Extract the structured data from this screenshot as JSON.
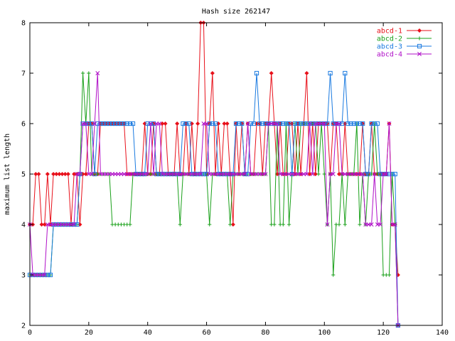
{
  "chart_data": {
    "type": "line",
    "title": "Hash size 262147",
    "xlabel": "",
    "ylabel": "maximum list length",
    "xlim": [
      0,
      140
    ],
    "ylim": [
      2,
      8
    ],
    "xticks": [
      0,
      20,
      40,
      60,
      80,
      100,
      120,
      140
    ],
    "yticks": [
      2,
      3,
      4,
      5,
      6,
      7,
      8
    ],
    "grid": false,
    "legend_position": "top-right",
    "series": [
      {
        "name": "abcd-1",
        "color": "#e8101a",
        "marker": "diamond",
        "values": [
          4,
          4,
          5,
          5,
          4,
          4,
          5,
          4,
          5,
          5,
          5,
          5,
          5,
          5,
          4,
          5,
          5,
          4,
          5,
          5,
          6,
          6,
          5,
          5,
          6,
          6,
          6,
          6,
          6,
          6,
          6,
          6,
          6,
          5,
          5,
          5,
          5,
          5,
          5,
          6,
          5,
          5,
          6,
          5,
          5,
          6,
          6,
          5,
          5,
          5,
          6,
          5,
          5,
          6,
          5,
          6,
          5,
          6,
          8,
          8,
          5,
          6,
          7,
          5,
          6,
          5,
          6,
          6,
          5,
          4,
          6,
          5,
          6,
          5,
          6,
          5,
          5,
          6,
          6,
          5,
          6,
          6,
          7,
          6,
          5,
          6,
          5,
          5,
          6,
          6,
          5,
          6,
          5,
          6,
          7,
          5,
          6,
          5,
          6,
          6,
          6,
          6,
          5,
          6,
          6,
          5,
          5,
          6,
          5,
          5,
          5,
          5,
          5,
          6,
          5,
          5,
          6,
          5,
          5,
          5,
          5,
          5,
          6,
          4,
          4,
          3
        ]
      },
      {
        "name": "abcd-2",
        "color": "#1aa01a",
        "marker": "plus",
        "values": [
          3,
          3,
          3,
          3,
          3,
          3,
          3,
          3,
          4,
          4,
          4,
          4,
          4,
          4,
          4,
          4,
          4,
          5,
          7,
          6,
          7,
          5,
          5,
          5,
          5,
          5,
          5,
          5,
          4,
          4,
          4,
          4,
          4,
          4,
          4,
          5,
          5,
          5,
          5,
          5,
          5,
          5,
          5,
          5,
          5,
          5,
          5,
          5,
          5,
          5,
          5,
          4,
          5,
          5,
          5,
          5,
          5,
          5,
          5,
          5,
          5,
          4,
          5,
          5,
          5,
          5,
          5,
          5,
          4,
          5,
          5,
          5,
          5,
          5,
          5,
          5,
          5,
          5,
          5,
          5,
          5,
          6,
          4,
          4,
          6,
          4,
          4,
          6,
          4,
          5,
          6,
          5,
          6,
          6,
          6,
          6,
          6,
          6,
          5,
          6,
          5,
          4,
          5,
          3,
          4,
          4,
          5,
          4,
          5,
          5,
          5,
          6,
          4,
          5,
          4,
          5,
          5,
          6,
          5,
          5,
          3,
          3,
          3,
          5,
          4,
          2
        ]
      },
      {
        "name": "abcd-3",
        "color": "#1a7ae0",
        "marker": "square",
        "values": [
          3,
          3,
          3,
          3,
          3,
          3,
          3,
          3,
          4,
          4,
          4,
          4,
          4,
          4,
          4,
          4,
          4,
          5,
          6,
          6,
          6,
          6,
          5,
          6,
          6,
          6,
          6,
          6,
          6,
          6,
          6,
          6,
          6,
          6,
          6,
          6,
          5,
          5,
          5,
          5,
          6,
          6,
          6,
          5,
          5,
          5,
          5,
          5,
          5,
          5,
          5,
          5,
          6,
          6,
          6,
          5,
          5,
          5,
          5,
          5,
          5,
          6,
          6,
          6,
          5,
          5,
          5,
          5,
          5,
          5,
          6,
          6,
          6,
          5,
          5,
          6,
          6,
          7,
          6,
          6,
          6,
          6,
          6,
          6,
          6,
          6,
          6,
          6,
          6,
          5,
          6,
          6,
          6,
          6,
          6,
          6,
          6,
          6,
          6,
          6,
          6,
          6,
          7,
          6,
          6,
          6,
          6,
          7,
          6,
          6,
          6,
          6,
          6,
          6,
          5,
          5,
          6,
          6,
          6,
          5,
          5,
          5,
          5,
          5,
          5,
          2
        ]
      },
      {
        "name": "abcd-4",
        "color": "#b010c8",
        "marker": "cross",
        "values": [
          4,
          3,
          3,
          3,
          3,
          3,
          4,
          4,
          4,
          4,
          4,
          4,
          4,
          4,
          4,
          4,
          5,
          5,
          6,
          6,
          5,
          5,
          6,
          7,
          5,
          5,
          5,
          5,
          5,
          5,
          5,
          5,
          5,
          5,
          5,
          5,
          5,
          5,
          5,
          5,
          5,
          6,
          5,
          6,
          6,
          5,
          5,
          5,
          5,
          5,
          5,
          5,
          5,
          5,
          5,
          5,
          5,
          5,
          5,
          6,
          6,
          5,
          5,
          5,
          5,
          5,
          5,
          5,
          5,
          5,
          5,
          5,
          5,
          5,
          6,
          5,
          5,
          5,
          5,
          5,
          5,
          6,
          6,
          6,
          6,
          5,
          5,
          5,
          5,
          5,
          5,
          5,
          5,
          5,
          5,
          6,
          5,
          6,
          6,
          6,
          6,
          4,
          5,
          5,
          6,
          6,
          5,
          5,
          5,
          5,
          5,
          5,
          5,
          5,
          4,
          4,
          4,
          5,
          4,
          4,
          5,
          5,
          6,
          4,
          4,
          2
        ]
      }
    ]
  }
}
